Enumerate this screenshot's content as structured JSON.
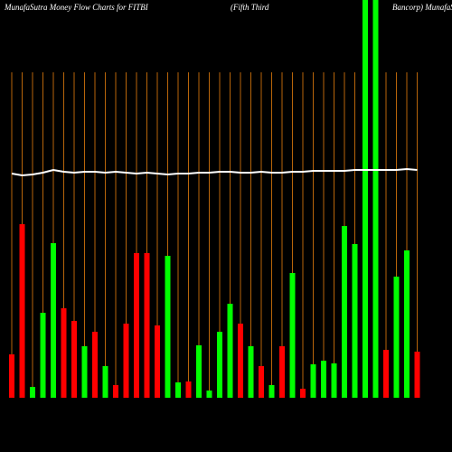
{
  "chart_data": {
    "type": "bar",
    "title_parts": [
      "MunafaSutra  Money Flow  Charts for FITBI",
      "(Fifth Third",
      "Bancorp) MunafaS"
    ],
    "categories": [
      null,
      null,
      null,
      null,
      null,
      null,
      null,
      null,
      null,
      null,
      null,
      null,
      null,
      null,
      null,
      null,
      null,
      null,
      null,
      null,
      null,
      null,
      null,
      null,
      null,
      null,
      null,
      null,
      null,
      null,
      null,
      null,
      null,
      null,
      null,
      null,
      null,
      null,
      null,
      null
    ],
    "values": [
      48,
      192,
      12,
      94,
      171,
      99,
      85,
      57,
      73,
      35,
      14,
      82,
      160,
      160,
      80,
      157,
      17,
      18,
      58,
      8,
      73,
      104,
      82,
      57,
      35,
      14,
      57,
      138,
      10,
      37,
      41,
      38,
      190,
      170,
      460,
      460,
      53,
      134,
      163,
      51
    ],
    "colors": [
      "#ff0000",
      "#ff0000",
      "#00ff00",
      "#00ff00",
      "#00ff00",
      "#ff0000",
      "#ff0000",
      "#00ff00",
      "#ff0000",
      "#00ff00",
      "#ff0000",
      "#ff0000",
      "#ff0000",
      "#ff0000",
      "#ff0000",
      "#00ff00",
      "#00ff00",
      "#ff0000",
      "#00ff00",
      "#00ff00",
      "#00ff00",
      "#00ff00",
      "#ff0000",
      "#00ff00",
      "#ff0000",
      "#00ff00",
      "#ff0000",
      "#00ff00",
      "#ff0000",
      "#00ff00",
      "#00ff00",
      "#00ff00",
      "#00ff00",
      "#00ff00",
      "#00ff00",
      "#00ff00",
      "#ff0000",
      "#00ff00",
      "#00ff00",
      "#ff0000"
    ],
    "line_values": [
      248,
      246,
      247,
      249,
      252,
      250,
      249,
      250,
      250,
      249,
      250,
      249,
      248,
      249,
      248,
      247,
      248,
      248,
      249,
      249,
      250,
      250,
      249,
      249,
      250,
      249,
      249,
      250,
      250,
      251,
      251,
      251,
      251,
      252,
      252,
      252,
      252,
      252,
      253,
      252
    ],
    "line_color": "#ffffff",
    "grid": true,
    "grid_color": "#b8650a",
    "ylim": [
      0,
      440
    ]
  }
}
